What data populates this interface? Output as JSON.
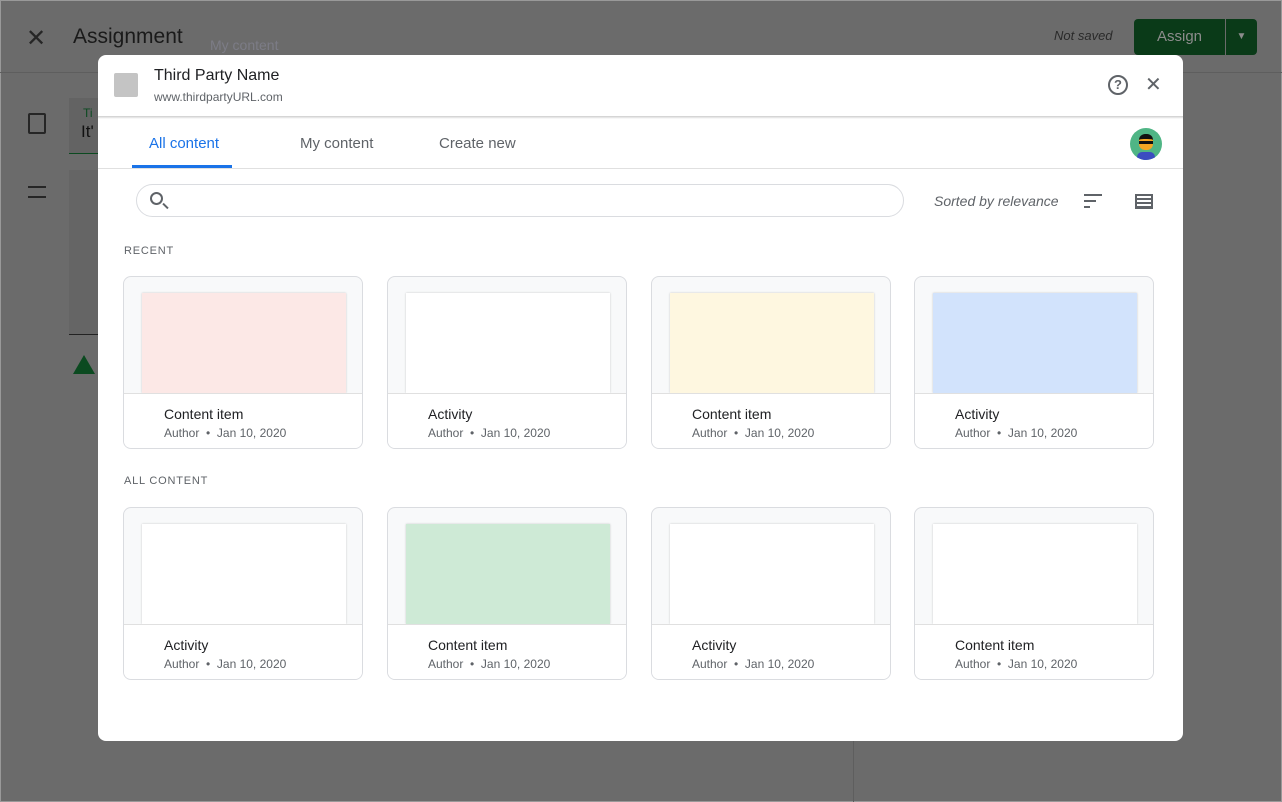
{
  "background": {
    "close_icon": "close-icon",
    "title": "Assignment",
    "ghost_text": "My content",
    "status": "Not saved",
    "assign_label": "Assign",
    "field_label": "Ti",
    "field_value": "It'"
  },
  "dialog": {
    "name": "Third Party Name",
    "url": "www.thirdpartyURL.com",
    "tabs": [
      "All content",
      "My content",
      "Create new"
    ],
    "active_tab": 0,
    "accent": "#1a73e8",
    "search": {
      "placeholder": "",
      "value": ""
    },
    "sort_label": "Sorted by relevance",
    "sections": [
      {
        "title": "RECENT",
        "items": [
          {
            "title": "Content item",
            "author": "Author",
            "date": "Jan 10, 2020",
            "color": "#fce8e6"
          },
          {
            "title": "Activity",
            "author": "Author",
            "date": "Jan 10, 2020",
            "color": "#ffffff"
          },
          {
            "title": "Content item",
            "author": "Author",
            "date": "Jan 10, 2020",
            "color": "#fef7e0"
          },
          {
            "title": "Activity",
            "author": "Author",
            "date": "Jan 10, 2020",
            "color": "#d2e3fc"
          }
        ]
      },
      {
        "title": "ALL CONTENT",
        "items": [
          {
            "title": "Activity",
            "author": "Author",
            "date": "Jan 10, 2020",
            "color": "#ffffff"
          },
          {
            "title": "Content item",
            "author": "Author",
            "date": "Jan 10, 2020",
            "color": "#ceead6"
          },
          {
            "title": "Activity",
            "author": "Author",
            "date": "Jan 10, 2020",
            "color": "#ffffff"
          },
          {
            "title": "Content item",
            "author": "Author",
            "date": "Jan 10, 2020",
            "color": "#ffffff"
          }
        ]
      }
    ]
  }
}
